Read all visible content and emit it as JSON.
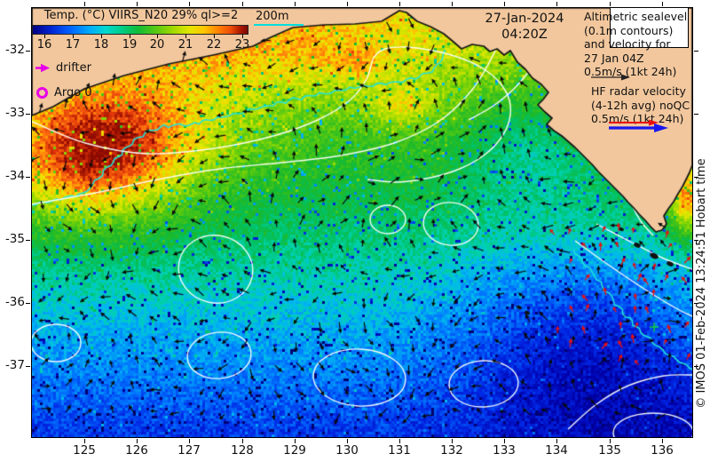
{
  "colorbar": {
    "title": "Temp. (°C) VIIRS_N20 29% ql>=2",
    "tick_labels": [
      "16",
      "17",
      "18",
      "19",
      "20",
      "21",
      "22",
      "23"
    ]
  },
  "annotations": {
    "bathymetry_label": "200m",
    "date_line1": "27-Jan-2024",
    "date_line2": "04:20Z"
  },
  "legend": {
    "drifter_label": "drifter",
    "argo_label": "Argo 0",
    "altimetry_lines": [
      "Altimetric sealevel",
      "(0.1m contours)",
      "and velocity for",
      "27 Jan 04Z",
      "0.5m/s (1kt 24h)"
    ],
    "hf_radar_lines": [
      "HF radar velocity",
      "(4-12h avg) noQC",
      "0.5m/s (1kt 24h)"
    ]
  },
  "axes": {
    "x_tick_labels": [
      "125",
      "126",
      "127",
      "128",
      "129",
      "130",
      "131",
      "132",
      "133",
      "134",
      "135",
      "136"
    ],
    "y_tick_labels": [
      "-32",
      "-33",
      "-34",
      "-35",
      "-36",
      "-37"
    ]
  },
  "credit": "© IMOS 01-Feb-2024 13:24:51 Hobart time",
  "colors": {
    "land": "#f2c79d",
    "ssh_contour": "#ffffff",
    "bathy_contour": "#22e2da",
    "drifter_marker": "#e800e8",
    "argo_marker": "#e800e8",
    "altimetry_arrow": "#222222",
    "hf_arrow_red": "#e81010",
    "hf_arrow_blue": "#1818ee",
    "hf_plus_green": "#12d23c",
    "cold_end": "#000082",
    "warm_end": "#7a0b00"
  }
}
